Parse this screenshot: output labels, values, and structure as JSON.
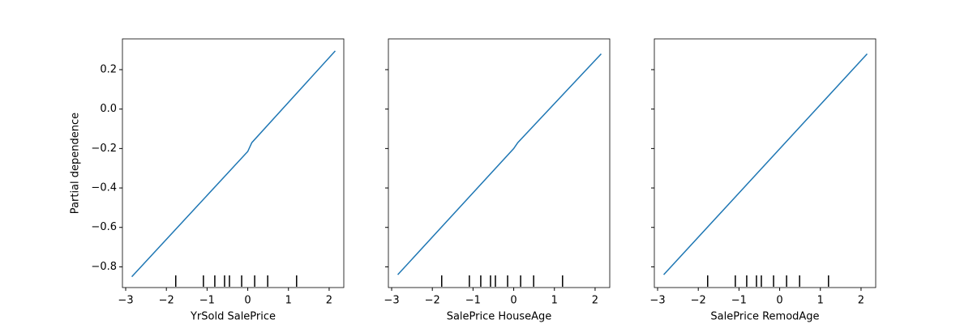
{
  "chart_data": [
    {
      "type": "line",
      "xlabel": "YrSold SalePrice",
      "ylabel": "Partial dependence",
      "color": "#1f77b4",
      "x": [
        -2.85,
        0,
        0.1,
        2.15
      ],
      "values": [
        -0.85,
        -0.215,
        -0.17,
        0.295
      ],
      "deciles": [
        -1.77,
        -1.09,
        -0.81,
        -0.57,
        -0.45,
        -0.15,
        0.17,
        0.49,
        1.2
      ],
      "xlim": [
        -3.08,
        2.36
      ],
      "ylim": [
        -0.905,
        0.356
      ],
      "xticks": [
        {
          "value": -3,
          "label": "−3"
        },
        {
          "value": -2,
          "label": "−2"
        },
        {
          "value": -1,
          "label": "−1"
        },
        0,
        1,
        2
      ],
      "yticks": [
        {
          "value": -0.8,
          "label": "−0.8"
        },
        {
          "value": -0.6,
          "label": "−0.6"
        },
        {
          "value": -0.4,
          "label": "−0.4"
        },
        {
          "value": -0.2,
          "label": "−0.2"
        },
        {
          "value": 0,
          "label": "0.0"
        },
        0.2
      ]
    },
    {
      "type": "line",
      "xlabel": "SalePrice HouseAge",
      "color": "#1f77b4",
      "x": [
        -2.85,
        0,
        0.1,
        2.15
      ],
      "values": [
        -0.84,
        -0.2,
        -0.17,
        0.28
      ],
      "deciles": [
        -1.77,
        -1.09,
        -0.81,
        -0.57,
        -0.45,
        -0.15,
        0.17,
        0.49,
        1.2
      ],
      "xlim": [
        -3.08,
        2.36
      ],
      "ylim": [
        -0.905,
        0.356
      ],
      "xticks": [
        {
          "value": -3,
          "label": "−3"
        },
        {
          "value": -2,
          "label": "−2"
        },
        {
          "value": -1,
          "label": "−1"
        },
        0,
        1,
        2
      ],
      "yticks": [
        -0.8,
        -0.6,
        -0.4,
        -0.2,
        0,
        0.2
      ]
    },
    {
      "type": "line",
      "xlabel": "SalePrice RemodAge",
      "color": "#1f77b4",
      "x": [
        -2.85,
        2.15
      ],
      "values": [
        -0.84,
        0.28
      ],
      "deciles": [
        -1.77,
        -1.09,
        -0.81,
        -0.57,
        -0.45,
        -0.15,
        0.17,
        0.49,
        1.2
      ],
      "xlim": [
        -3.08,
        2.36
      ],
      "ylim": [
        -0.905,
        0.356
      ],
      "xticks": [
        {
          "value": -3,
          "label": "−3"
        },
        {
          "value": -2,
          "label": "−2"
        },
        {
          "value": -1,
          "label": "−1"
        },
        0,
        1,
        2
      ],
      "yticks": [
        -0.8,
        -0.6,
        -0.4,
        -0.2,
        0,
        0.2
      ]
    }
  ]
}
